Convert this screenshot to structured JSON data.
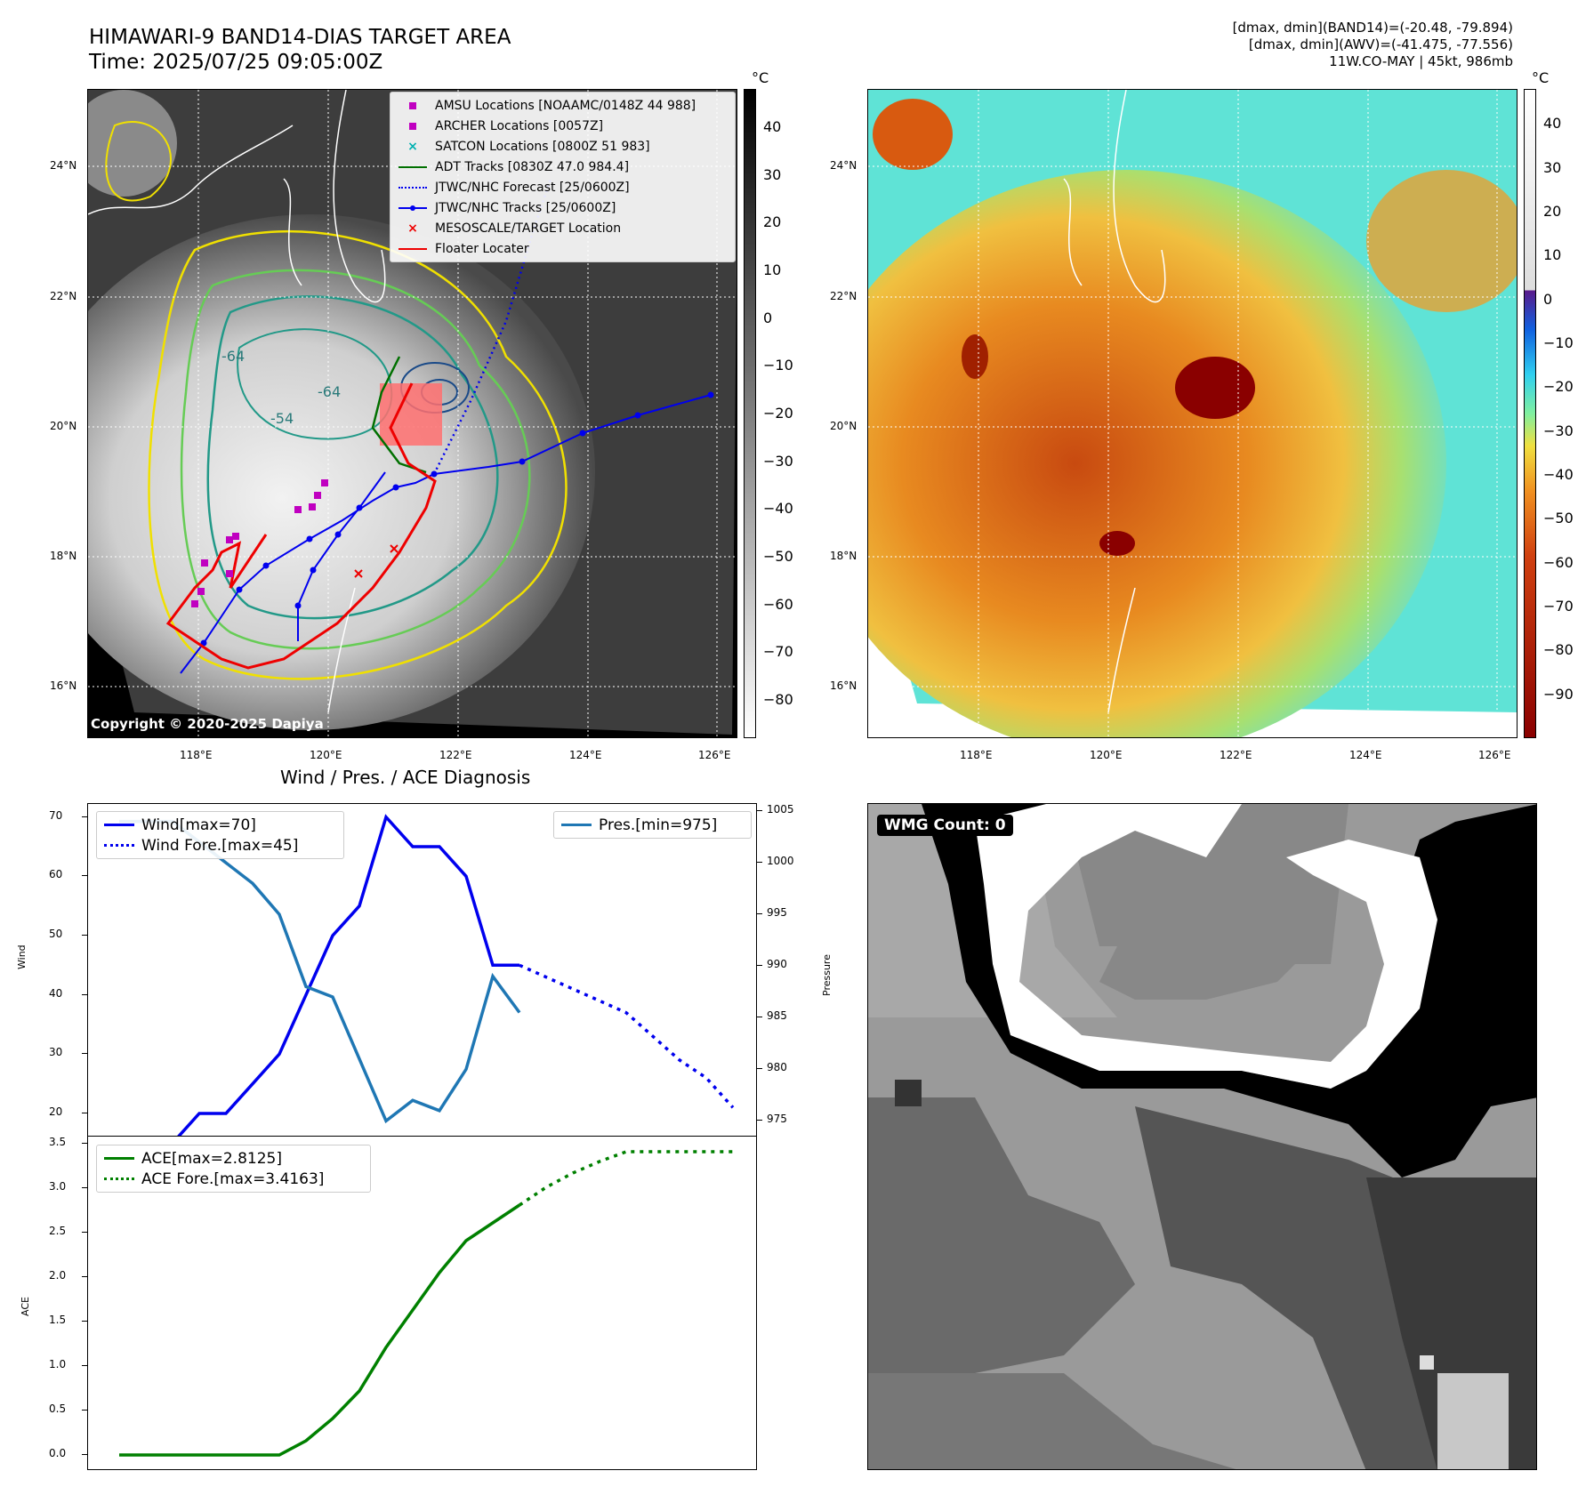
{
  "header": {
    "title_line1": "HIMAWARI-9 BAND14-DIAS TARGET AREA",
    "title_line2": "Time: 2025/07/25 09:05:00Z",
    "info_line1": "[dmax, dmin](BAND14)=(-20.48, -79.894)",
    "info_line2": "[dmax, dmin](AWV)=(-41.475, -77.556)",
    "info_line3": "11W.CO-MAY | 45kt, 986mb"
  },
  "map": {
    "lat_labels": [
      "24°N",
      "22°N",
      "20°N",
      "18°N",
      "16°N"
    ],
    "lon_labels": [
      "118°E",
      "120°E",
      "122°E",
      "124°E",
      "126°E"
    ],
    "copyright": "Copyright © 2020-2025 Dapiya",
    "contour_labels": [
      "-64",
      "-54",
      "-64",
      "-64",
      "-54",
      "-54",
      "-64"
    ],
    "legend": [
      {
        "label": "AMSU Locations [NOAAMC/0148Z 44 988]",
        "symbol": "square",
        "color": "#c000c0"
      },
      {
        "label": "ARCHER Locations [0057Z]",
        "symbol": "square",
        "color": "#c000c0"
      },
      {
        "label": "SATCON Locations [0800Z 51 983]",
        "symbol": "x",
        "color": "#00b0b0"
      },
      {
        "label": "ADT Tracks [0830Z 47.0 984.4]",
        "symbol": "line",
        "color": "#007000"
      },
      {
        "label": "JTWC/NHC Forecast [25/0600Z]",
        "symbol": "dotted",
        "color": "#0000ee"
      },
      {
        "label": "JTWC/NHC Tracks [25/0600Z]",
        "symbol": "line-dot",
        "color": "#0000ee"
      },
      {
        "label": "MESOSCALE/TARGET Location",
        "symbol": "x",
        "color": "#ee0000"
      },
      {
        "label": "Floater Locater",
        "symbol": "line",
        "color": "#ee0000"
      }
    ]
  },
  "colorbar_left": {
    "unit": "°C",
    "labels": [
      "40",
      "30",
      "20",
      "10",
      "0",
      "−10",
      "−20",
      "−30",
      "−40",
      "−50",
      "−60",
      "−70",
      "−80"
    ]
  },
  "colorbar_right": {
    "unit": "°C",
    "labels": [
      "40",
      "30",
      "20",
      "10",
      "0",
      "−10",
      "−20",
      "−30",
      "−40",
      "−50",
      "−60",
      "−70",
      "−80",
      "−90"
    ]
  },
  "wmg": {
    "count_label": "WMG Count: 0"
  },
  "chart_data": [
    {
      "type": "line",
      "title": "Wind / Pres. / ACE Diagnosis",
      "ylabel": "Wind",
      "y2label": "Pressure",
      "ylim": [
        17,
        71
      ],
      "y2lim": [
        974,
        1005
      ],
      "yticks": [
        "70",
        "60",
        "50",
        "40",
        "30",
        "20"
      ],
      "y2ticks": [
        "1005",
        "1000",
        "995",
        "990",
        "985",
        "980",
        "975"
      ],
      "series": [
        {
          "name": "Wind[max=70]",
          "axis": "left",
          "style": "solid",
          "color": "#0000ee",
          "x": [
            0,
            1,
            2,
            3,
            4,
            5,
            6,
            7,
            8,
            9,
            10,
            11,
            12,
            13,
            14,
            15
          ],
          "values": [
            15,
            15,
            15,
            20,
            20,
            25,
            30,
            40,
            50,
            55,
            70,
            65,
            65,
            60,
            45,
            45
          ]
        },
        {
          "name": "Wind Fore.[max=45]",
          "axis": "left",
          "style": "dotted",
          "color": "#0000ee",
          "x": [
            15,
            16,
            17,
            18,
            19,
            20,
            21,
            22,
            23
          ],
          "values": [
            45,
            43,
            41,
            39,
            37,
            33,
            29,
            26,
            21
          ]
        },
        {
          "name": "Pres.[min=975]",
          "axis": "right",
          "style": "solid",
          "color": "#1f77b4",
          "x": [
            0,
            1,
            2,
            3,
            4,
            5,
            6,
            7,
            8,
            9,
            10,
            11,
            12,
            13,
            14,
            15
          ],
          "values": [
            1004,
            1004,
            1004,
            1002,
            1000,
            998,
            995,
            988,
            987,
            981,
            975,
            977,
            976,
            980,
            989,
            985.5
          ]
        }
      ]
    },
    {
      "type": "line",
      "ylabel": "ACE",
      "ylim": [
        -0.1,
        3.5
      ],
      "yticks": [
        "3.5",
        "3.0",
        "2.5",
        "2.0",
        "1.5",
        "1.0",
        "0.5",
        "0.0"
      ],
      "series": [
        {
          "name": "ACE[max=2.8125]",
          "style": "solid",
          "color": "#008000",
          "x": [
            0,
            1,
            2,
            3,
            4,
            5,
            6,
            7,
            8,
            9,
            10,
            11,
            12,
            13,
            14,
            15
          ],
          "values": [
            0,
            0,
            0,
            0,
            0,
            0,
            0,
            0.16,
            0.41,
            0.72,
            1.21,
            1.63,
            2.05,
            2.41,
            2.61,
            2.81
          ]
        },
        {
          "name": "ACE Fore.[max=3.4163]",
          "style": "dotted",
          "color": "#008000",
          "x": [
            15,
            16,
            17,
            18,
            19,
            20,
            21,
            22,
            23
          ],
          "values": [
            2.81,
            3.01,
            3.17,
            3.3,
            3.41,
            3.41,
            3.41,
            3.41,
            3.41
          ]
        }
      ]
    }
  ]
}
